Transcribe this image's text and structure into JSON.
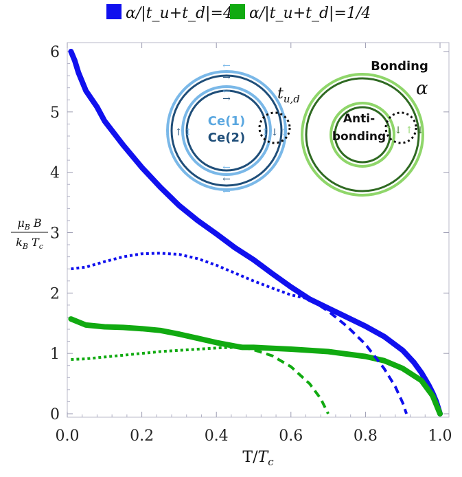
{
  "chart_data": {
    "type": "line",
    "title": "",
    "xlabel": "T/T_c",
    "ylabel": "μ_B B / k_B T_c",
    "xlim": [
      0,
      1
    ],
    "ylim": [
      0,
      6
    ],
    "x_ticks": [
      "0.0",
      "0.2",
      "0.4",
      "0.6",
      "0.8",
      "1.0"
    ],
    "y_ticks": [
      "0",
      "1",
      "2",
      "3",
      "4",
      "5",
      "6"
    ],
    "legend_position": "top",
    "series": [
      {
        "name": "α/|t_u+t_d|=4",
        "color": "#1010ee",
        "style": "solid",
        "x": [
          0.01,
          0.02,
          0.03,
          0.05,
          0.08,
          0.1,
          0.15,
          0.2,
          0.25,
          0.3,
          0.35,
          0.4,
          0.45,
          0.5,
          0.55,
          0.6,
          0.65,
          0.7,
          0.75,
          0.8,
          0.85,
          0.9,
          0.93,
          0.95,
          0.97,
          0.98,
          0.99,
          1.0
        ],
        "y": [
          6.0,
          5.85,
          5.65,
          5.35,
          5.08,
          4.85,
          4.45,
          4.08,
          3.75,
          3.45,
          3.2,
          2.98,
          2.75,
          2.55,
          2.32,
          2.1,
          1.9,
          1.75,
          1.6,
          1.45,
          1.28,
          1.05,
          0.85,
          0.68,
          0.47,
          0.35,
          0.2,
          0.0
        ]
      },
      {
        "name": "α/|t_u+t_d|=1/4",
        "color": "#11aa11",
        "style": "solid",
        "x": [
          0.01,
          0.05,
          0.1,
          0.15,
          0.2,
          0.25,
          0.3,
          0.35,
          0.4,
          0.45,
          0.47,
          0.5,
          0.6,
          0.7,
          0.8,
          0.85,
          0.9,
          0.95,
          0.98,
          1.0
        ],
        "y": [
          1.57,
          1.47,
          1.44,
          1.43,
          1.41,
          1.38,
          1.32,
          1.25,
          1.18,
          1.12,
          1.1,
          1.1,
          1.07,
          1.03,
          0.95,
          0.88,
          0.75,
          0.55,
          0.3,
          0.0
        ]
      },
      {
        "name": "",
        "color": "#1010ee",
        "style": "dotted",
        "x": [
          0.01,
          0.05,
          0.1,
          0.15,
          0.2,
          0.25,
          0.3,
          0.35,
          0.4,
          0.45,
          0.5,
          0.55,
          0.6,
          0.65
        ],
        "y": [
          2.4,
          2.43,
          2.52,
          2.6,
          2.65,
          2.66,
          2.64,
          2.57,
          2.46,
          2.33,
          2.2,
          2.08,
          1.97,
          1.9
        ]
      },
      {
        "name": "",
        "color": "#1010ee",
        "style": "dashed",
        "x": [
          0.65,
          0.7,
          0.75,
          0.8,
          0.85,
          0.88,
          0.9,
          0.91
        ],
        "y": [
          1.9,
          1.7,
          1.45,
          1.15,
          0.75,
          0.45,
          0.18,
          0.0
        ]
      },
      {
        "name": "",
        "color": "#11aa11",
        "style": "dotted",
        "x": [
          0.01,
          0.05,
          0.1,
          0.15,
          0.2,
          0.25,
          0.3,
          0.35,
          0.4,
          0.45,
          0.47
        ],
        "y": [
          0.9,
          0.91,
          0.94,
          0.97,
          1.0,
          1.03,
          1.05,
          1.07,
          1.09,
          1.1,
          1.1
        ]
      },
      {
        "name": "",
        "color": "#11aa11",
        "style": "dashed",
        "x": [
          0.47,
          0.5,
          0.55,
          0.6,
          0.65,
          0.68,
          0.7
        ],
        "y": [
          1.1,
          1.06,
          0.96,
          0.78,
          0.5,
          0.25,
          0.0
        ]
      }
    ],
    "inset": {
      "left_labels": [
        "Ce(1)",
        "Ce(2)"
      ],
      "left_hopping_label": "t",
      "left_hopping_subscript": "u,d",
      "right_labels": [
        "Bonding",
        "Anti-",
        "bonding"
      ],
      "right_coupling_label": "α",
      "left_colors": {
        "outer": "#7ab8e8",
        "inner": "#1f4e79"
      },
      "right_colors": {
        "outer": "#8fd66a",
        "inner": "#2f6a22"
      }
    }
  }
}
